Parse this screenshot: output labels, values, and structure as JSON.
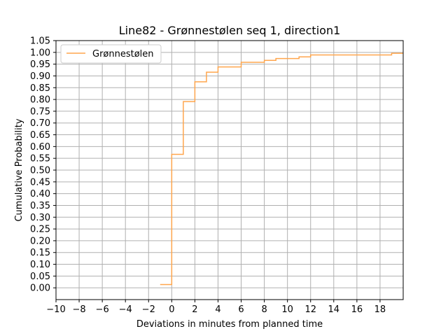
{
  "chart_data": {
    "type": "line",
    "title": "Line82 - Grønnestølen seq 1, direction1",
    "xlabel": "Deviations in minutes from planned time",
    "ylabel": "Cumulative Probability",
    "xlim": [
      -10,
      20
    ],
    "ylim": [
      -0.05,
      1.05
    ],
    "xticks": [
      -10,
      -8,
      -6,
      -4,
      -2,
      0,
      2,
      4,
      6,
      8,
      10,
      12,
      14,
      16,
      18
    ],
    "xtick_labels": [
      "−10",
      "−8",
      "−6",
      "−4",
      "−2",
      "0",
      "2",
      "4",
      "6",
      "8",
      "10",
      "12",
      "14",
      "16",
      "18"
    ],
    "yticks": [
      0.0,
      0.05,
      0.1,
      0.15,
      0.2,
      0.25,
      0.3,
      0.35,
      0.4,
      0.45,
      0.5,
      0.55,
      0.6,
      0.65,
      0.7,
      0.75,
      0.8,
      0.85,
      0.9,
      0.95,
      1.0,
      1.05
    ],
    "ytick_labels": [
      "0.00",
      "0.05",
      "0.10",
      "0.15",
      "0.20",
      "0.25",
      "0.30",
      "0.35",
      "0.40",
      "0.45",
      "0.50",
      "0.55",
      "0.60",
      "0.65",
      "0.70",
      "0.75",
      "0.80",
      "0.85",
      "0.90",
      "0.95",
      "1.00",
      "1.05"
    ],
    "grid": true,
    "legend_position": "top-left",
    "series": [
      {
        "name": "Grønnestølen",
        "color": "#ffa64d",
        "drawstyle": "steps-post",
        "x": [
          -1,
          0,
          1,
          2,
          3,
          4,
          6,
          8,
          9,
          11,
          12,
          19,
          20
        ],
        "y": [
          0.014,
          0.567,
          0.791,
          0.875,
          0.916,
          0.938,
          0.958,
          0.966,
          0.974,
          0.981,
          0.989,
          0.996,
          0.996
        ]
      }
    ]
  }
}
